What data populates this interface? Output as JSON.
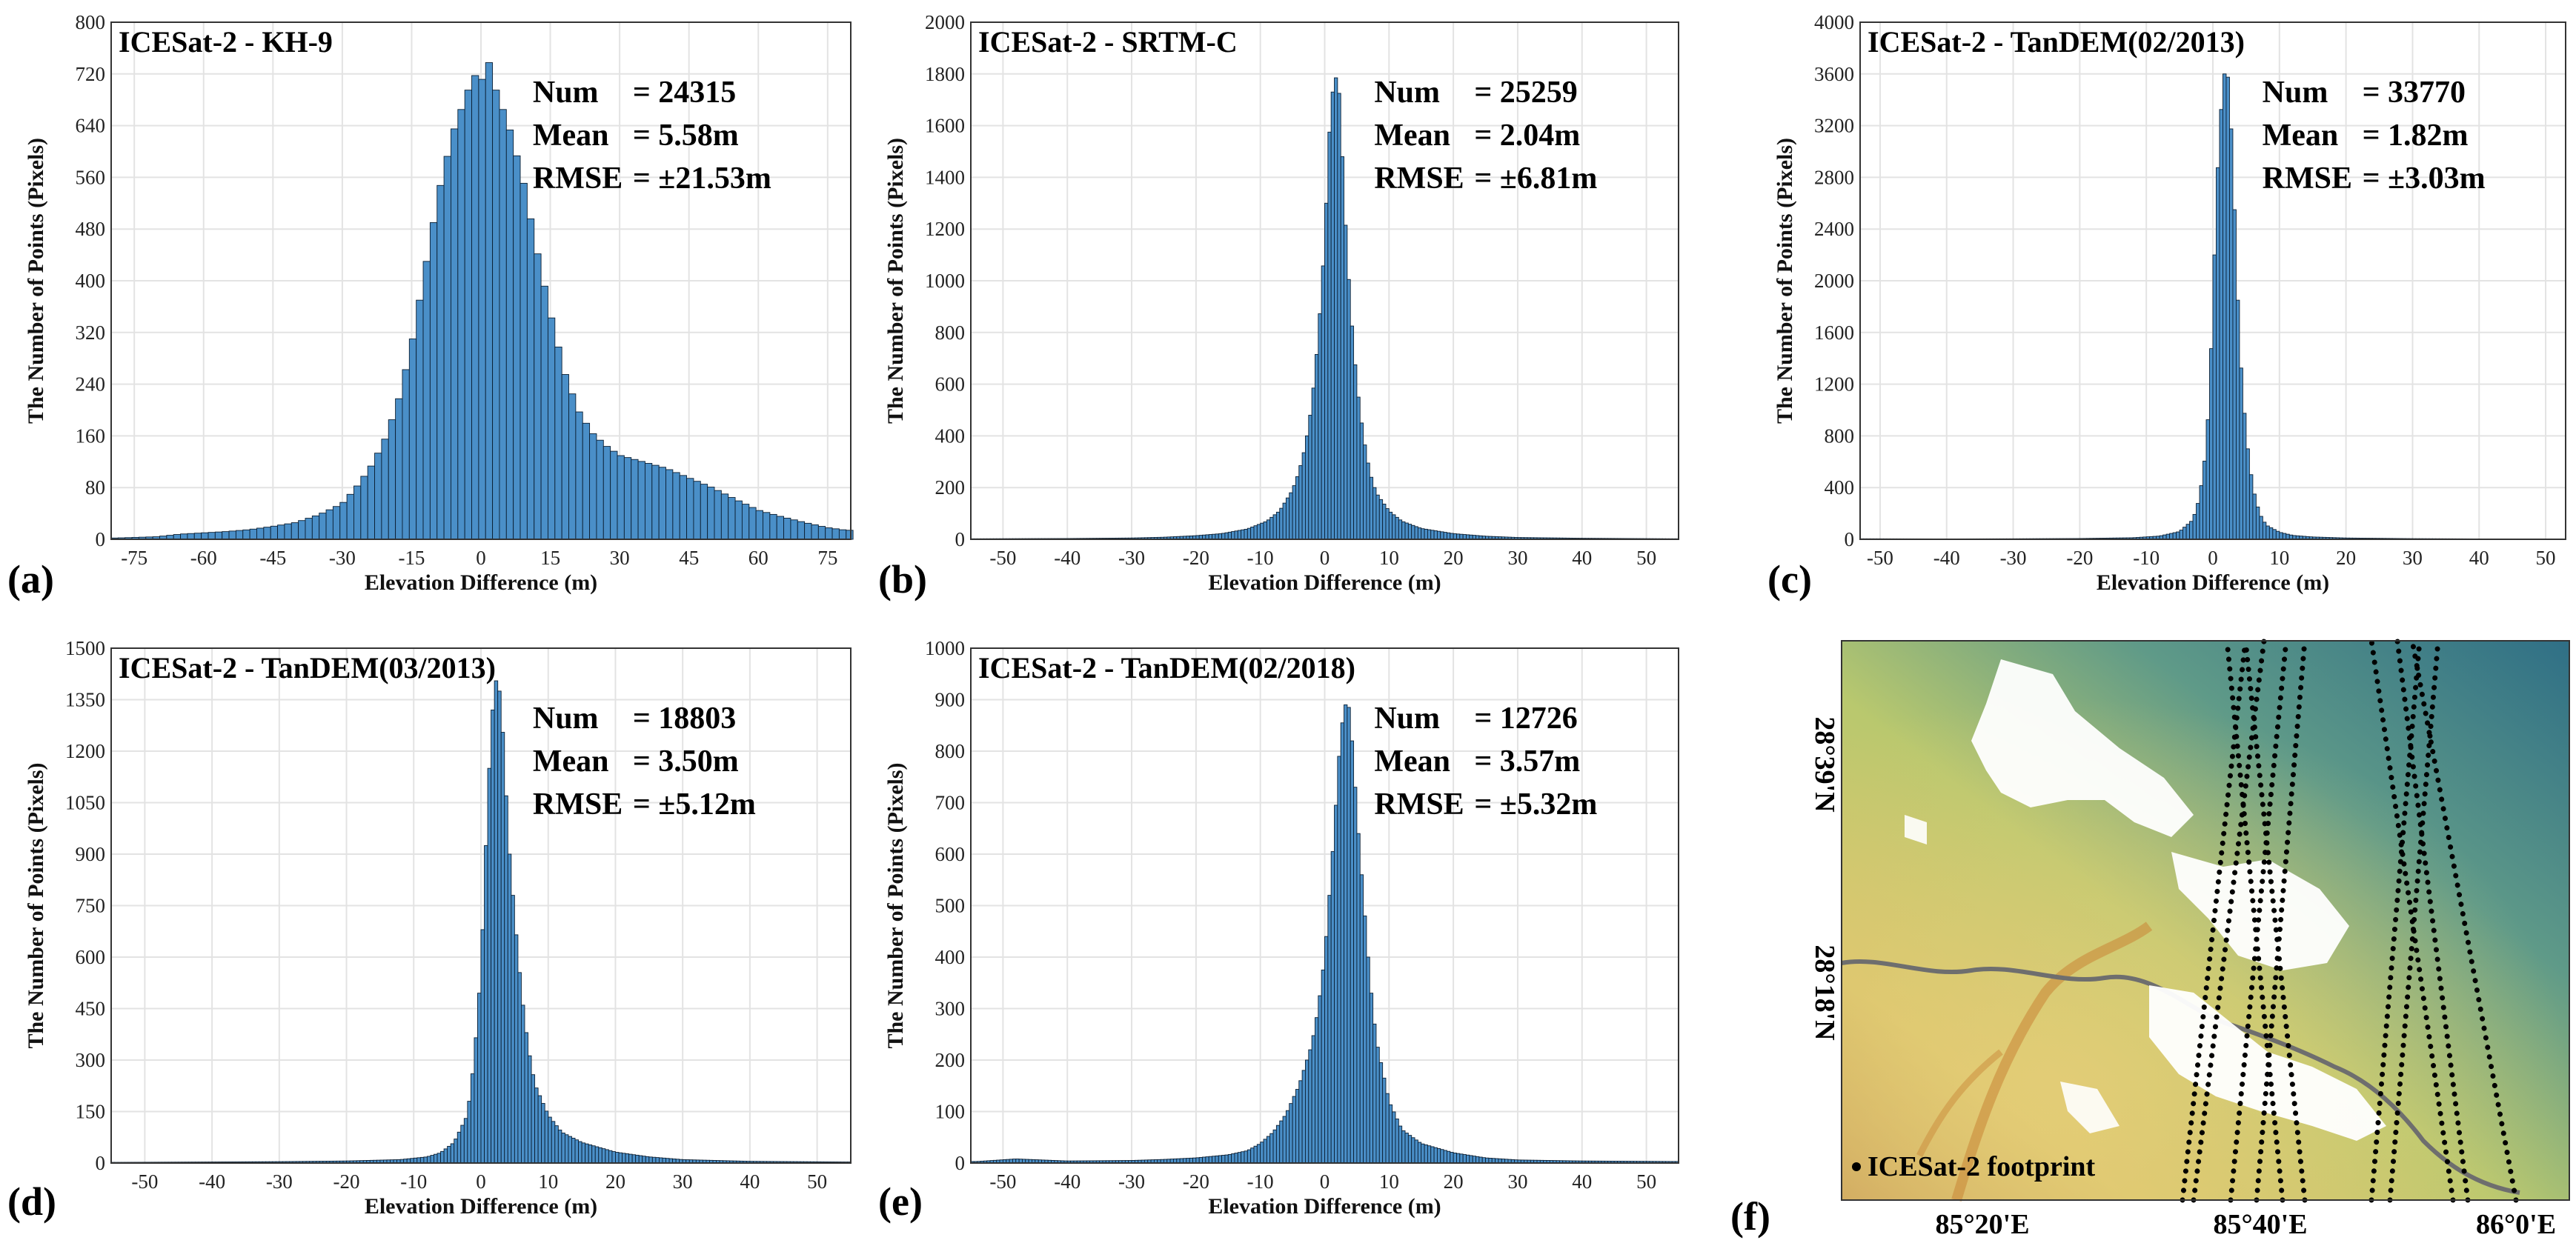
{
  "colors": {
    "bar_fill": "#4a8fc8",
    "bar_edge": "#0b1f33",
    "grid": "#e3e3e3",
    "axis": "#333333"
  },
  "chart_data": [
    {
      "id": "a",
      "type": "bar",
      "panel_label": "(a)",
      "title": "ICESat-2 - KH-9",
      "xlabel": "Elevation Difference (m)",
      "ylabel": "The Number of Points (Pixels)",
      "xlim": [
        -80,
        80
      ],
      "ylim": [
        0,
        800
      ],
      "xticks": [
        -75,
        -60,
        -45,
        -30,
        -15,
        0,
        15,
        30,
        45,
        60,
        75
      ],
      "yticks": [
        0,
        80,
        160,
        240,
        320,
        400,
        480,
        560,
        640,
        720,
        800
      ],
      "bin_width": 1.5,
      "bins": [
        {
          "x": -79,
          "y": 2
        },
        {
          "x": -70,
          "y": 4
        },
        {
          "x": -65,
          "y": 8
        },
        {
          "x": -60,
          "y": 10
        },
        {
          "x": -55,
          "y": 12
        },
        {
          "x": -50,
          "y": 15
        },
        {
          "x": -45,
          "y": 20
        },
        {
          "x": -40,
          "y": 26
        },
        {
          "x": -35,
          "y": 38
        },
        {
          "x": -30,
          "y": 55
        },
        {
          "x": -27,
          "y": 80
        },
        {
          "x": -24,
          "y": 110
        },
        {
          "x": -21,
          "y": 150
        },
        {
          "x": -18,
          "y": 210
        },
        {
          "x": -15,
          "y": 300
        },
        {
          "x": -12,
          "y": 420
        },
        {
          "x": -9,
          "y": 540
        },
        {
          "x": -6,
          "y": 630
        },
        {
          "x": -3,
          "y": 690
        },
        {
          "x": -1.5,
          "y": 720
        },
        {
          "x": 0,
          "y": 705
        },
        {
          "x": 1.5,
          "y": 745
        },
        {
          "x": 3,
          "y": 700
        },
        {
          "x": 6,
          "y": 640
        },
        {
          "x": 9,
          "y": 560
        },
        {
          "x": 12,
          "y": 450
        },
        {
          "x": 15,
          "y": 350
        },
        {
          "x": 18,
          "y": 260
        },
        {
          "x": 21,
          "y": 200
        },
        {
          "x": 24,
          "y": 165
        },
        {
          "x": 27,
          "y": 145
        },
        {
          "x": 30,
          "y": 130
        },
        {
          "x": 35,
          "y": 120
        },
        {
          "x": 40,
          "y": 110
        },
        {
          "x": 45,
          "y": 95
        },
        {
          "x": 50,
          "y": 80
        },
        {
          "x": 55,
          "y": 62
        },
        {
          "x": 60,
          "y": 45
        },
        {
          "x": 65,
          "y": 35
        },
        {
          "x": 70,
          "y": 26
        },
        {
          "x": 75,
          "y": 18
        },
        {
          "x": 79,
          "y": 14
        }
      ],
      "stats": {
        "num_label": "Num",
        "num": "= 24315",
        "mean_label": "Mean",
        "mean": "= 5.58m",
        "rmse_label": "RMSE",
        "rmse": "= ±21.53m"
      }
    },
    {
      "id": "b",
      "type": "bar",
      "panel_label": "(b)",
      "title": "ICESat-2 - SRTM-C",
      "xlabel": "Elevation Difference (m)",
      "ylabel": "The Number of Points (Pixels)",
      "xlim": [
        -55,
        55
      ],
      "ylim": [
        0,
        2000
      ],
      "xticks": [
        -50,
        -40,
        -30,
        -20,
        -10,
        0,
        10,
        20,
        30,
        40,
        50
      ],
      "yticks": [
        0,
        200,
        400,
        600,
        800,
        1000,
        1200,
        1400,
        1600,
        1800,
        2000
      ],
      "bin_width": 0.5,
      "bins": [
        {
          "x": -54,
          "y": 2
        },
        {
          "x": -40,
          "y": 3
        },
        {
          "x": -30,
          "y": 5
        },
        {
          "x": -25,
          "y": 8
        },
        {
          "x": -20,
          "y": 14
        },
        {
          "x": -16,
          "y": 22
        },
        {
          "x": -12,
          "y": 40
        },
        {
          "x": -9,
          "y": 70
        },
        {
          "x": -7,
          "y": 110
        },
        {
          "x": -5,
          "y": 190
        },
        {
          "x": -4,
          "y": 260
        },
        {
          "x": -3,
          "y": 360
        },
        {
          "x": -2,
          "y": 520
        },
        {
          "x": -1,
          "y": 780
        },
        {
          "x": 0,
          "y": 1150
        },
        {
          "x": 0.5,
          "y": 1450
        },
        {
          "x": 1,
          "y": 1700
        },
        {
          "x": 1.5,
          "y": 1760
        },
        {
          "x": 2,
          "y": 1810
        },
        {
          "x": 2.5,
          "y": 1640
        },
        {
          "x": 3,
          "y": 1320
        },
        {
          "x": 4,
          "y": 900
        },
        {
          "x": 5,
          "y": 600
        },
        {
          "x": 6,
          "y": 400
        },
        {
          "x": 7,
          "y": 260
        },
        {
          "x": 8,
          "y": 180
        },
        {
          "x": 10,
          "y": 110
        },
        {
          "x": 12,
          "y": 70
        },
        {
          "x": 15,
          "y": 42
        },
        {
          "x": 20,
          "y": 22
        },
        {
          "x": 25,
          "y": 12
        },
        {
          "x": 30,
          "y": 7
        },
        {
          "x": 40,
          "y": 4
        },
        {
          "x": 54,
          "y": 2
        }
      ],
      "stats": {
        "num_label": "Num",
        "num": "= 25259",
        "mean_label": "Mean",
        "mean": "= 2.04m",
        "rmse_label": "RMSE",
        "rmse": "= ±6.81m"
      }
    },
    {
      "id": "c",
      "type": "bar",
      "panel_label": "(c)",
      "title": "ICESat-2 - TanDEM(02/2013)",
      "xlabel": "Elevation Difference (m)",
      "ylabel": "The Number of Points (Pixels)",
      "xlim": [
        -53,
        53
      ],
      "ylim": [
        0,
        4000
      ],
      "xticks": [
        -50,
        -40,
        -30,
        -20,
        -10,
        0,
        10,
        20,
        30,
        40,
        50
      ],
      "yticks": [
        0,
        400,
        800,
        1200,
        1600,
        2000,
        2400,
        2800,
        3200,
        3600,
        4000
      ],
      "bin_width": 0.5,
      "bins": [
        {
          "x": -52,
          "y": 4
        },
        {
          "x": -40,
          "y": 3
        },
        {
          "x": -30,
          "y": 4
        },
        {
          "x": -20,
          "y": 6
        },
        {
          "x": -12,
          "y": 12
        },
        {
          "x": -8,
          "y": 25
        },
        {
          "x": -5,
          "y": 60
        },
        {
          "x": -3,
          "y": 150
        },
        {
          "x": -2,
          "y": 320
        },
        {
          "x": -1,
          "y": 700
        },
        {
          "x": -0.5,
          "y": 1150
        },
        {
          "x": 0,
          "y": 1800
        },
        {
          "x": 0.5,
          "y": 2600
        },
        {
          "x": 1,
          "y": 3150
        },
        {
          "x": 1.5,
          "y": 3500
        },
        {
          "x": 2,
          "y": 3700
        },
        {
          "x": 2.5,
          "y": 3450
        },
        {
          "x": 3,
          "y": 2900
        },
        {
          "x": 3.5,
          "y": 2200
        },
        {
          "x": 4,
          "y": 1500
        },
        {
          "x": 5,
          "y": 800
        },
        {
          "x": 6,
          "y": 400
        },
        {
          "x": 7,
          "y": 200
        },
        {
          "x": 8,
          "y": 110
        },
        {
          "x": 10,
          "y": 55
        },
        {
          "x": 12,
          "y": 30
        },
        {
          "x": 15,
          "y": 18
        },
        {
          "x": 20,
          "y": 10
        },
        {
          "x": 30,
          "y": 5
        },
        {
          "x": 40,
          "y": 3
        },
        {
          "x": 52,
          "y": 3
        }
      ],
      "stats": {
        "num_label": "Num",
        "num": "= 33770",
        "mean_label": "Mean",
        "mean": "= 1.82m",
        "rmse_label": "RMSE",
        "rmse": "= ±3.03m"
      }
    },
    {
      "id": "d",
      "type": "bar",
      "panel_label": "(d)",
      "title": "ICESat-2 - TanDEM(03/2013)",
      "xlabel": "Elevation Difference (m)",
      "ylabel": "The Number of Points (Pixels)",
      "xlim": [
        -55,
        55
      ],
      "ylim": [
        0,
        1500
      ],
      "xticks": [
        -50,
        -40,
        -30,
        -20,
        -10,
        0,
        10,
        20,
        30,
        40,
        50
      ],
      "yticks": [
        0,
        150,
        300,
        450,
        600,
        750,
        900,
        1050,
        1200,
        1350,
        1500
      ],
      "bin_width": 0.5,
      "bins": [
        {
          "x": -54,
          "y": 2
        },
        {
          "x": -40,
          "y": 3
        },
        {
          "x": -30,
          "y": 4
        },
        {
          "x": -20,
          "y": 6
        },
        {
          "x": -12,
          "y": 10
        },
        {
          "x": -8,
          "y": 18
        },
        {
          "x": -6,
          "y": 30
        },
        {
          "x": -4,
          "y": 60
        },
        {
          "x": -2,
          "y": 140
        },
        {
          "x": -1,
          "y": 300
        },
        {
          "x": 0,
          "y": 560
        },
        {
          "x": 0.5,
          "y": 800
        },
        {
          "x": 1,
          "y": 1050
        },
        {
          "x": 1.5,
          "y": 1250
        },
        {
          "x": 2,
          "y": 1390
        },
        {
          "x": 2.5,
          "y": 1420
        },
        {
          "x": 3,
          "y": 1330
        },
        {
          "x": 3.5,
          "y": 1180
        },
        {
          "x": 4,
          "y": 960
        },
        {
          "x": 5,
          "y": 720
        },
        {
          "x": 6,
          "y": 500
        },
        {
          "x": 7,
          "y": 340
        },
        {
          "x": 8,
          "y": 230
        },
        {
          "x": 10,
          "y": 140
        },
        {
          "x": 12,
          "y": 90
        },
        {
          "x": 15,
          "y": 60
        },
        {
          "x": 20,
          "y": 32
        },
        {
          "x": 25,
          "y": 18
        },
        {
          "x": 30,
          "y": 10
        },
        {
          "x": 40,
          "y": 5
        },
        {
          "x": 54,
          "y": 3
        }
      ],
      "stats": {
        "num_label": "Num",
        "num": "= 18803",
        "mean_label": "Mean",
        "mean": "= 3.50m",
        "rmse_label": "RMSE",
        "rmse": "= ±5.12m"
      }
    },
    {
      "id": "e",
      "type": "bar",
      "panel_label": "(e)",
      "title": "ICESat-2 - TanDEM(02/2018)",
      "xlabel": "Elevation Difference (m)",
      "ylabel": "The Number of Points (Pixels)",
      "xlim": [
        -55,
        55
      ],
      "ylim": [
        0,
        1000
      ],
      "xticks": [
        -50,
        -40,
        -30,
        -20,
        -10,
        0,
        10,
        20,
        30,
        40,
        50
      ],
      "yticks": [
        0,
        100,
        200,
        300,
        400,
        500,
        600,
        700,
        800,
        900,
        1000
      ],
      "bin_width": 0.5,
      "bins": [
        {
          "x": -54,
          "y": 3
        },
        {
          "x": -48,
          "y": 8
        },
        {
          "x": -40,
          "y": 4
        },
        {
          "x": -30,
          "y": 5
        },
        {
          "x": -25,
          "y": 7
        },
        {
          "x": -20,
          "y": 10
        },
        {
          "x": -15,
          "y": 16
        },
        {
          "x": -12,
          "y": 24
        },
        {
          "x": -10,
          "y": 38
        },
        {
          "x": -8,
          "y": 60
        },
        {
          "x": -6,
          "y": 95
        },
        {
          "x": -4,
          "y": 150
        },
        {
          "x": -2,
          "y": 230
        },
        {
          "x": -1,
          "y": 300
        },
        {
          "x": 0,
          "y": 400
        },
        {
          "x": 1,
          "y": 560
        },
        {
          "x": 2,
          "y": 740
        },
        {
          "x": 2.5,
          "y": 840
        },
        {
          "x": 3,
          "y": 870
        },
        {
          "x": 3.5,
          "y": 910
        },
        {
          "x": 4,
          "y": 860
        },
        {
          "x": 4.5,
          "y": 780
        },
        {
          "x": 5,
          "y": 680
        },
        {
          "x": 6,
          "y": 520
        },
        {
          "x": 7,
          "y": 360
        },
        {
          "x": 8,
          "y": 240
        },
        {
          "x": 10,
          "y": 120
        },
        {
          "x": 12,
          "y": 65
        },
        {
          "x": 15,
          "y": 38
        },
        {
          "x": 20,
          "y": 20
        },
        {
          "x": 25,
          "y": 10
        },
        {
          "x": 30,
          "y": 6
        },
        {
          "x": 40,
          "y": 4
        },
        {
          "x": 54,
          "y": 3
        }
      ],
      "stats": {
        "num_label": "Num",
        "num": "= 12726",
        "mean_label": "Mean",
        "mean": "= 3.57m",
        "rmse_label": "RMSE",
        "rmse": "= ±5.32m"
      }
    }
  ],
  "map": {
    "panel_label": "(f)",
    "x_labels": [
      "85°20'E",
      "85°40'E",
      "86°0'E"
    ],
    "y_labels": [
      "28°39'N",
      "28°18'N"
    ],
    "legend": "ICESat-2 footprint"
  }
}
